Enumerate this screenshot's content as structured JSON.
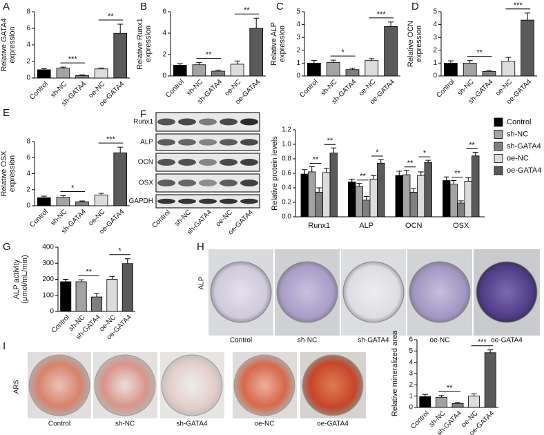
{
  "chart_data": [
    {
      "type": "bar",
      "panel": "A",
      "ylabel": [
        "Relative GATA4",
        "expression"
      ],
      "categories": [
        "Control",
        "sh-NC",
        "sh-GATA4",
        "oe-NC",
        "oe-GATA4"
      ],
      "values": [
        1.0,
        1.2,
        0.3,
        1.1,
        5.4
      ],
      "errors": [
        0.15,
        0.12,
        0.08,
        0.1,
        1.1
      ],
      "colors": [
        "#000000",
        "#a3a3a3",
        "#7f7f7f",
        "#dcdcdc",
        "#5a5a5a"
      ],
      "ylim": [
        0,
        8
      ],
      "yticks": [
        0,
        2,
        4,
        6,
        8
      ],
      "annotations": [
        "***",
        "**"
      ]
    },
    {
      "type": "bar",
      "panel": "B",
      "ylabel": [
        "Relative Runx1",
        "expression"
      ],
      "categories": [
        "Control",
        "sh-NC",
        "sh-GATA4",
        "oe-NC",
        "oe-GATA4"
      ],
      "values": [
        1.0,
        1.05,
        0.45,
        1.1,
        4.45
      ],
      "errors": [
        0.15,
        0.2,
        0.1,
        0.3,
        0.95
      ],
      "colors": [
        "#000000",
        "#a3a3a3",
        "#7f7f7f",
        "#dcdcdc",
        "#5a5a5a"
      ],
      "ylim": [
        0,
        6
      ],
      "yticks": [
        0,
        2,
        4,
        6
      ],
      "annotations": [
        "**",
        "**"
      ]
    },
    {
      "type": "bar",
      "panel": "C",
      "ylabel": [
        "Relative ALP",
        "expression"
      ],
      "categories": [
        "Control",
        "sh-NC",
        "sh-GATA4",
        "oe-NC",
        "oe-GATA4"
      ],
      "values": [
        1.0,
        1.05,
        0.5,
        1.2,
        3.85
      ],
      "errors": [
        0.2,
        0.18,
        0.1,
        0.15,
        0.35
      ],
      "colors": [
        "#000000",
        "#a3a3a3",
        "#7f7f7f",
        "#dcdcdc",
        "#5a5a5a"
      ],
      "ylim": [
        0,
        5
      ],
      "yticks": [
        0,
        1,
        2,
        3,
        4,
        5
      ],
      "annotations": [
        "*",
        "***"
      ]
    },
    {
      "type": "bar",
      "panel": "D",
      "ylabel": [
        "Relative OCN",
        "expression"
      ],
      "categories": [
        "Control",
        "sh-NC",
        "sh-GATA4",
        "oe-NC",
        "oe-GATA4"
      ],
      "values": [
        1.0,
        1.0,
        0.35,
        1.15,
        4.35
      ],
      "errors": [
        0.18,
        0.2,
        0.08,
        0.3,
        0.55
      ],
      "colors": [
        "#000000",
        "#a3a3a3",
        "#7f7f7f",
        "#dcdcdc",
        "#5a5a5a"
      ],
      "ylim": [
        0,
        5
      ],
      "yticks": [
        0,
        1,
        2,
        3,
        4,
        5
      ],
      "annotations": [
        "**",
        "***"
      ]
    },
    {
      "type": "bar",
      "panel": "E",
      "ylabel": [
        "Relative OSX",
        "expression"
      ],
      "categories": [
        "Control",
        "sh-NC",
        "sh-GATA4",
        "oe-NC",
        "oe-GATA4"
      ],
      "values": [
        1.0,
        1.05,
        0.5,
        1.35,
        6.6
      ],
      "errors": [
        0.2,
        0.2,
        0.1,
        0.2,
        0.7
      ],
      "colors": [
        "#000000",
        "#a3a3a3",
        "#7f7f7f",
        "#dcdcdc",
        "#5a5a5a"
      ],
      "ylim": [
        0,
        8
      ],
      "yticks": [
        0,
        2,
        4,
        6,
        8
      ],
      "annotations": [
        "*",
        "***"
      ]
    },
    {
      "type": "grouped_bar",
      "ylabel": [
        "Relative protein levels"
      ],
      "categories": [
        "Runx1",
        "ALP",
        "OCN",
        "OSX"
      ],
      "series": [
        {
          "name": "Control",
          "color": "#000000",
          "values": [
            0.59,
            0.48,
            0.57,
            0.5
          ],
          "errors": [
            0.06,
            0.04,
            0.06,
            0.05
          ]
        },
        {
          "name": "sh-NC",
          "color": "#a3a3a3",
          "values": [
            0.62,
            0.42,
            0.58,
            0.45
          ],
          "errors": [
            0.07,
            0.04,
            0.06,
            0.05
          ]
        },
        {
          "name": "sh-GATA4",
          "color": "#7f7f7f",
          "values": [
            0.34,
            0.23,
            0.34,
            0.19
          ],
          "errors": [
            0.06,
            0.05,
            0.05,
            0.03
          ]
        },
        {
          "name": "oe-NC",
          "color": "#dcdcdc",
          "values": [
            0.61,
            0.52,
            0.57,
            0.49
          ],
          "errors": [
            0.06,
            0.05,
            0.05,
            0.05
          ]
        },
        {
          "name": "oe-GATA4",
          "color": "#5a5a5a",
          "values": [
            0.88,
            0.74,
            0.75,
            0.84
          ],
          "errors": [
            0.07,
            0.05,
            0.03,
            0.05
          ]
        }
      ],
      "ylim": [
        0,
        1.2
      ],
      "yticks": [
        {
          "value": 0,
          "label": "0.0"
        },
        {
          "value": 0.2,
          "label": "0.2"
        },
        {
          "value": 0.4,
          "label": "0.4"
        },
        {
          "value": 0.6,
          "label": "0.6"
        },
        {
          "value": 0.8,
          "label": "0.8"
        },
        {
          "value": 1,
          "label": "1.0"
        },
        {
          "value": 1.2,
          "label": "1.2"
        }
      ],
      "annotations": [
        [
          "**",
          "**"
        ],
        [
          "**",
          "*"
        ],
        [
          "**",
          "*"
        ],
        [
          "**",
          "**"
        ]
      ],
      "legend": "right"
    },
    {
      "type": "bar",
      "panel": "G",
      "ylabel": [
        "ALP activity",
        "(μmol/mL/min)"
      ],
      "categories": [
        "Control",
        "sh-NC",
        "sh-GATA4",
        "oe-NC",
        "oe-GATA4"
      ],
      "values": [
        185,
        185,
        90,
        200,
        298
      ],
      "errors": [
        15,
        12,
        22,
        18,
        30
      ],
      "colors": [
        "#000000",
        "#a3a3a3",
        "#7f7f7f",
        "#dcdcdc",
        "#5a5a5a"
      ],
      "ylim": [
        0,
        400
      ],
      "yticks": [
        0,
        100,
        200,
        300,
        400
      ],
      "annotations": [
        "**",
        "*"
      ]
    },
    {
      "type": "bar",
      "ylabel": [
        "Relative mineralized area"
      ],
      "categories": [
        "Control",
        "sh-NC",
        "sh-GATA4",
        "oe-NC",
        "oe-GATA4"
      ],
      "values": [
        0.95,
        0.9,
        0.35,
        1.0,
        4.85
      ],
      "errors": [
        0.2,
        0.15,
        0.08,
        0.2,
        0.25
      ],
      "colors": [
        "#000000",
        "#a3a3a3",
        "#7f7f7f",
        "#dcdcdc",
        "#5a5a5a"
      ],
      "ylim": [
        0,
        6
      ],
      "yticks": [
        0,
        1,
        2,
        3,
        4,
        5,
        6
      ],
      "annotations": [
        "**",
        "***"
      ]
    }
  ],
  "blot": {
    "panel": "F",
    "rows": [
      "Runx1",
      "ALP",
      "OCN",
      "OSX",
      "GAPDH"
    ],
    "lanes": [
      "Control",
      "sh-NC",
      "sh-GATA4",
      "oe-NC",
      "oe-GATA4"
    ]
  },
  "alp_stain": {
    "panel": "H",
    "row_label": "ALP",
    "labels": [
      "Control",
      "sh-NC",
      "sh-GATA4",
      "oe-NC",
      "oe-GATA4"
    ]
  },
  "ars_stain": {
    "panel": "I",
    "row_label": "ARS",
    "labels": [
      "Control",
      "sh-NC",
      "sh-GATA4",
      "oe-NC",
      "oe-GATA4"
    ]
  }
}
